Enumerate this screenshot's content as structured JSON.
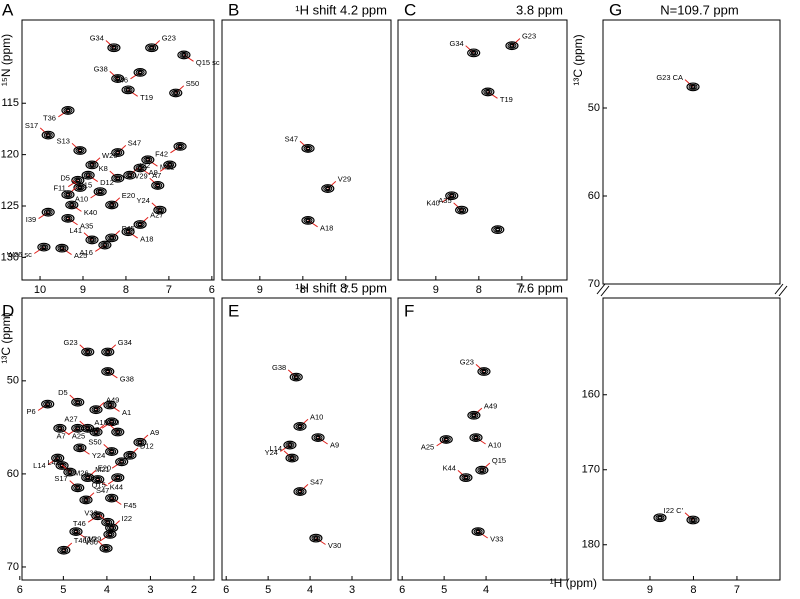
{
  "chart_data": [
    {
      "type": "scatter",
      "panel": "A",
      "ylabel": "¹⁵N (ppm)",
      "xlim": [
        10.42,
        5.95
      ],
      "ylim": [
        132.2,
        106.9
      ],
      "xticks": [
        10,
        9,
        8,
        7,
        6
      ],
      "yticks": [
        115,
        120,
        125,
        130
      ],
      "x": [
        8.28,
        7.4,
        6.65,
        7.67,
        8.19,
        6.84,
        7.95,
        9.35,
        9.81,
        8.19,
        7.49,
        6.74,
        9.07,
        8.79,
        8.88,
        9.12,
        8.19,
        7.91,
        7.67,
        6.98,
        9.07,
        9.35,
        9.26,
        8.6,
        7.26,
        8.33,
        9.35,
        9.81,
        7.21,
        7.67,
        9.49,
        9.91,
        8.79,
        8.33,
        7.95,
        8.49
      ],
      "y": [
        109.6,
        109.6,
        110.3,
        112.0,
        112.6,
        114.0,
        113.7,
        115.7,
        118.1,
        119.8,
        120.5,
        119.2,
        119.6,
        121.0,
        122.0,
        122.5,
        122.3,
        122.0,
        121.3,
        121.0,
        123.2,
        123.9,
        124.9,
        123.6,
        123.0,
        124.9,
        126.2,
        125.6,
        125.4,
        126.8,
        129.1,
        129.0,
        128.3,
        128.1,
        127.5,
        128.8
      ],
      "labels": [
        "G34",
        "G23",
        "Q15 sc",
        "T46",
        "G38",
        "S50",
        "T19",
        "T36",
        "S17",
        "S47",
        "M21",
        "F42",
        "S13",
        "W26",
        "D12",
        "F11",
        "K8",
        "I22",
        "A7",
        "A9",
        "D5",
        "Q15",
        "K40",
        "A10",
        "V29",
        "E20",
        "A35",
        "I39",
        "Y24",
        "A27",
        "A25",
        "W26 sc",
        "L41",
        "F45",
        "A18",
        "A16"
      ]
    },
    {
      "type": "scatter",
      "panel": "B",
      "title": "¹H shift  4.2 ppm",
      "xlim": [
        9.88,
        5.95
      ],
      "ylim": [
        132.2,
        106.9
      ],
      "xticks": [
        9,
        8,
        7
      ],
      "x": [
        7.88,
        7.42,
        7.88
      ],
      "y": [
        119.4,
        123.3,
        126.4
      ],
      "labels": [
        "S47",
        "V29",
        "A18"
      ]
    },
    {
      "type": "scatter",
      "panel": "C",
      "title": "3.8 ppm",
      "xlim": [
        9.88,
        5.95
      ],
      "ylim": [
        132.2,
        106.9
      ],
      "xticks": [
        9,
        8,
        7
      ],
      "x": [
        8.12,
        7.23,
        7.79,
        8.63,
        8.4,
        7.56
      ],
      "y": [
        110.1,
        109.4,
        113.9,
        124.0,
        125.4,
        127.3
      ],
      "labels": [
        "G34",
        "G23",
        "T19",
        "K40",
        "A35",
        null
      ]
    },
    {
      "type": "scatter",
      "panel": "G",
      "title": "N=109.7 ppm",
      "ylabel": "¹³C (ppm)",
      "xlim": [
        10.08,
        6.01
      ],
      "ylim": [
        70,
        40
      ],
      "yticks": [
        50,
        60,
        70
      ],
      "x": [
        8.01
      ],
      "y": [
        47.6
      ],
      "labels": [
        "G23 CA"
      ]
    },
    {
      "type": "scatter",
      "panel": "D",
      "ylabel": "¹³C (ppm)",
      "xlim": [
        5.95,
        1.54
      ],
      "ylim": [
        71.4,
        41.1
      ],
      "xticks": [
        6,
        5,
        4,
        3,
        2
      ],
      "yticks": [
        50,
        60,
        70
      ],
      "x": [
        4.44,
        3.98,
        3.98,
        5.36,
        4.67,
        4.25,
        3.93,
        3.89,
        3.75,
        3.24,
        5.08,
        4.67,
        4.44,
        4.25,
        4.62,
        5.13,
        3.89,
        3.47,
        5.03,
        3.66,
        4.85,
        4.44,
        4.21,
        3.75,
        4.67,
        4.48,
        3.89,
        4.21,
        3.98,
        3.89,
        4.71,
        3.93,
        4.02,
        4.99
      ],
      "y": [
        46.9,
        46.9,
        49.0,
        52.5,
        52.3,
        53.1,
        52.6,
        54.4,
        55.5,
        56.6,
        55.1,
        55.1,
        55.1,
        55.5,
        57.2,
        58.3,
        57.6,
        58.0,
        59.1,
        58.7,
        59.8,
        60.4,
        60.6,
        60.4,
        61.5,
        62.8,
        62.6,
        64.5,
        65.2,
        65.8,
        66.2,
        66.5,
        68.0,
        68.2
      ],
      "labels": [
        "G23",
        "G34",
        "G38",
        "P6",
        "D5",
        "A49",
        "A1",
        "A16",
        "A18",
        "A9",
        "A25",
        "A7",
        "A27",
        "A10",
        "Y24",
        "L14",
        "S50",
        "D12",
        "M26",
        "M21",
        "L41",
        "E20",
        "K44",
        "Q15",
        "S17",
        "S47",
        "F45",
        "T46",
        "V33",
        "I22",
        "V29",
        "V30",
        "T19",
        "T46β"
      ]
    },
    {
      "type": "scatter",
      "panel": "E",
      "title": "¹H shift  8.5 ppm",
      "xlim": [
        6.1,
        2.07
      ],
      "ylim": [
        71.4,
        41.1
      ],
      "xticks": [
        6,
        5,
        4,
        3
      ],
      "x": [
        4.33,
        4.24,
        3.81,
        4.48,
        4.43,
        4.24,
        3.86
      ],
      "y": [
        49.6,
        54.9,
        56.1,
        56.9,
        58.3,
        61.9,
        66.9
      ],
      "labels": [
        "G38",
        "A10",
        "A9",
        "Y24",
        "L14",
        "S47",
        "V30"
      ]
    },
    {
      "type": "scatter",
      "panel": "F",
      "title": "7.6 ppm",
      "xlabel": "¹H (ppm)",
      "xlim": [
        6.1,
        2.07
      ],
      "ylim": [
        71.4,
        41.1
      ],
      "xticks": [
        6,
        5,
        4
      ],
      "x": [
        4.05,
        4.29,
        4.24,
        4.95,
        4.48,
        4.1,
        4.19
      ],
      "y": [
        49.0,
        53.7,
        56.1,
        56.3,
        60.4,
        59.6,
        66.2
      ],
      "labels": [
        "G23",
        "A49",
        "A10",
        "A25",
        "K44",
        "Q15",
        "V33"
      ]
    },
    {
      "type": "scatter",
      "xlim": [
        10.08,
        6.01
      ],
      "ylim": [
        184.7,
        147.1
      ],
      "xticks": [
        9,
        8,
        7
      ],
      "yticks": [
        160,
        170,
        180
      ],
      "x": [
        8.01,
        8.77
      ],
      "y": [
        176.7,
        176.4
      ],
      "labels": [
        "I22 C'",
        null
      ]
    }
  ]
}
